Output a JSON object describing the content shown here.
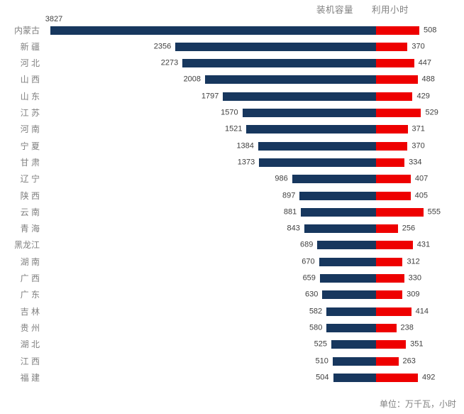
{
  "legend": {
    "capacity_label": "装机容量",
    "hours_label": "利用小时"
  },
  "footnote": "单位：万千瓦，小时",
  "colors": {
    "capacity_bar": "#17375E",
    "hours_bar": "#EE0000",
    "label_gray": "#808080",
    "value_text": "#404040",
    "background": "#FFFFFF"
  },
  "chart_data": {
    "type": "bar",
    "variant": "diverging-horizontal",
    "title": "",
    "unit_note": "单位：万千瓦，小时",
    "legend_position": "top-right",
    "grid": false,
    "axes": "none (data labels at bar ends)",
    "categories": [
      "内蒙古",
      "新疆",
      "河北",
      "山西",
      "山东",
      "江苏",
      "河南",
      "宁夏",
      "甘肃",
      "辽宁",
      "陕西",
      "云南",
      "青海",
      "黑龙江",
      "湖南",
      "广西",
      "广东",
      "吉林",
      "贵州",
      "湖北",
      "江西",
      "福建"
    ],
    "category_display": [
      "内蒙古",
      "新 疆",
      "河 北",
      "山 西",
      "山 东",
      "江 苏",
      "河 南",
      "宁 夏",
      "甘 肃",
      "辽 宁",
      "陕 西",
      "云 南",
      "青 海",
      "黑龙江",
      "湖 南",
      "广 西",
      "广 东",
      "吉 林",
      "贵 州",
      "湖 北",
      "江 西",
      "福 建"
    ],
    "series": [
      {
        "name": "装机容量",
        "unit": "万千瓦",
        "direction": "left",
        "color": "#17375E",
        "values": [
          3827,
          2356,
          2273,
          2008,
          1797,
          1570,
          1521,
          1384,
          1373,
          986,
          897,
          881,
          843,
          689,
          670,
          659,
          630,
          582,
          580,
          525,
          510,
          504
        ]
      },
      {
        "name": "利用小时",
        "unit": "小时",
        "direction": "right",
        "color": "#EE0000",
        "values": [
          508,
          370,
          447,
          488,
          429,
          529,
          371,
          370,
          334,
          407,
          405,
          555,
          256,
          431,
          312,
          330,
          309,
          414,
          238,
          351,
          263,
          492
        ]
      }
    ]
  }
}
